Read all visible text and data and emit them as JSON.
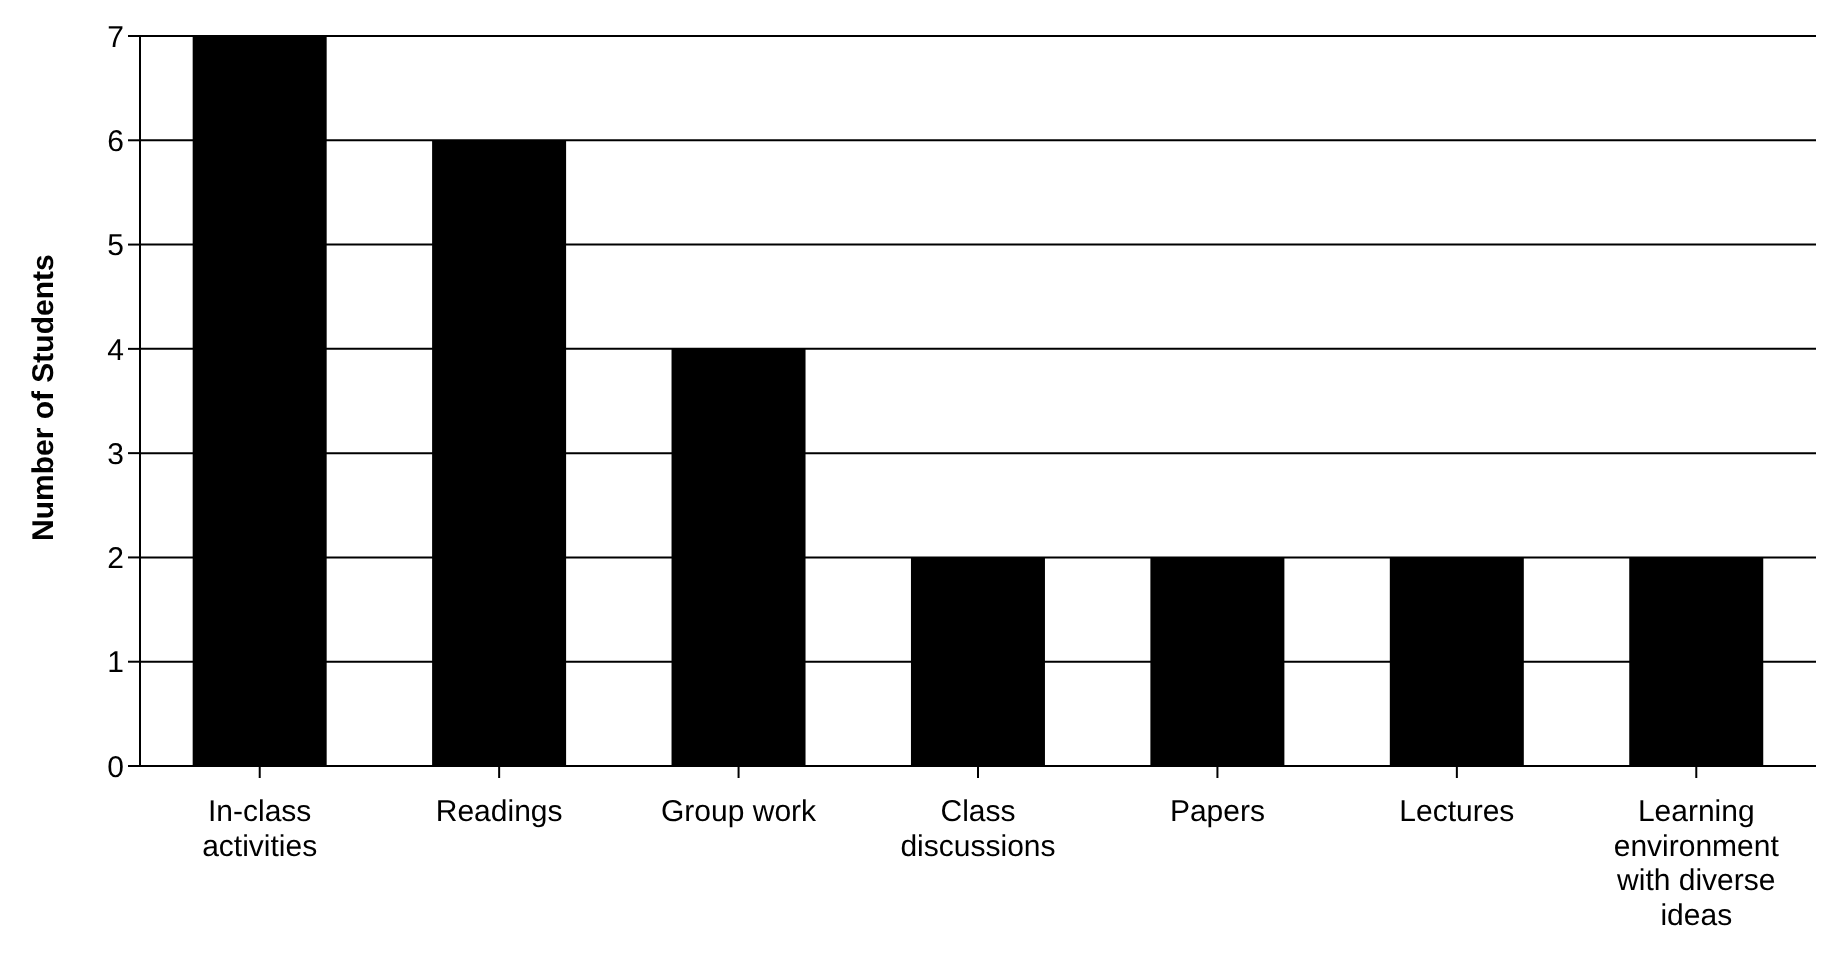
{
  "chart_data": {
    "type": "bar",
    "ylabel": "Number of Students",
    "categories": [
      "In-class activities",
      "Readings",
      "Group work",
      "Class discussions",
      "Papers",
      "Lectures",
      "Learning environment with diverse ideas"
    ],
    "values": [
      7,
      6,
      4,
      2,
      2,
      2,
      2
    ],
    "color": "#000000",
    "ylim": [
      0,
      7
    ],
    "yticks": [
      0,
      1,
      2,
      3,
      4,
      5,
      6,
      7
    ],
    "grid": "y"
  }
}
